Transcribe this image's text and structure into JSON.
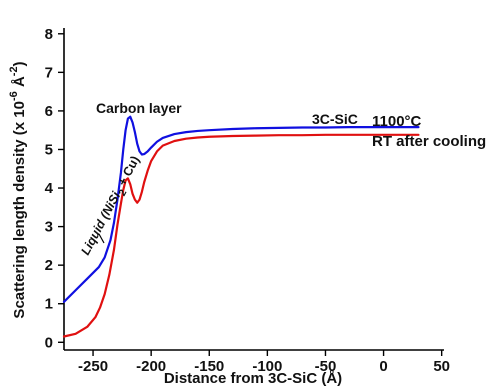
{
  "chart_data": {
    "type": "line",
    "xlabel": "Distance from 3C-SiC (Å)",
    "ylabel": {
      "prefix": "Scattering length density (x 10",
      "exp1": "-6",
      "mid": " Å",
      "exp2": "-2",
      "suffix": ")"
    },
    "xlim": [
      -275,
      52
    ],
    "ylim": [
      -0.2,
      8.15
    ],
    "xticks": [
      -250,
      -200,
      -150,
      -100,
      -50,
      0,
      50
    ],
    "yticks": [
      0,
      1,
      2,
      3,
      4,
      5,
      6,
      7,
      8
    ],
    "grid": false,
    "series": [
      {
        "name": "1100°C",
        "color": "#1010e0",
        "x": [
          -275,
          -265,
          -255,
          -245,
          -240,
          -235,
          -232,
          -229,
          -226,
          -224,
          -222,
          -220,
          -218,
          -216,
          -214,
          -212,
          -210,
          -208,
          -206,
          -203,
          -200,
          -195,
          -190,
          -180,
          -170,
          -160,
          -150,
          -130,
          -110,
          -90,
          -70,
          -50,
          -30,
          -10,
          0,
          10,
          20,
          30
        ],
        "y": [
          1.05,
          1.35,
          1.65,
          1.95,
          2.2,
          2.65,
          3.1,
          3.7,
          4.4,
          5.0,
          5.5,
          5.8,
          5.85,
          5.7,
          5.45,
          5.15,
          4.95,
          4.87,
          4.88,
          4.95,
          5.05,
          5.2,
          5.3,
          5.4,
          5.45,
          5.48,
          5.5,
          5.53,
          5.55,
          5.56,
          5.57,
          5.57,
          5.58,
          5.58,
          5.58,
          5.58,
          5.58,
          5.58
        ]
      },
      {
        "name": "RT after cooling",
        "color": "#e01010",
        "x": [
          -275,
          -265,
          -255,
          -248,
          -244,
          -240,
          -236,
          -232,
          -229,
          -226,
          -224,
          -222,
          -220,
          -218,
          -216,
          -214,
          -212,
          -210,
          -208,
          -206,
          -203,
          -200,
          -195,
          -190,
          -180,
          -170,
          -160,
          -150,
          -130,
          -110,
          -90,
          -70,
          -50,
          -30,
          -10,
          0,
          10,
          20,
          30
        ],
        "y": [
          0.15,
          0.22,
          0.4,
          0.65,
          0.9,
          1.25,
          1.75,
          2.4,
          3.05,
          3.6,
          3.95,
          4.2,
          4.25,
          4.1,
          3.85,
          3.7,
          3.62,
          3.7,
          3.9,
          4.15,
          4.45,
          4.7,
          4.95,
          5.1,
          5.22,
          5.28,
          5.31,
          5.33,
          5.35,
          5.36,
          5.37,
          5.37,
          5.38,
          5.38,
          5.38,
          5.38,
          5.38,
          5.38,
          5.38
        ]
      }
    ],
    "annotations": {
      "carbon_layer": "Carbon layer",
      "sic": "3C-SiC",
      "liquid_pre": "Liquid (NiSi",
      "liquid_sub": "2",
      "liquid_post": " + Cu)"
    }
  }
}
